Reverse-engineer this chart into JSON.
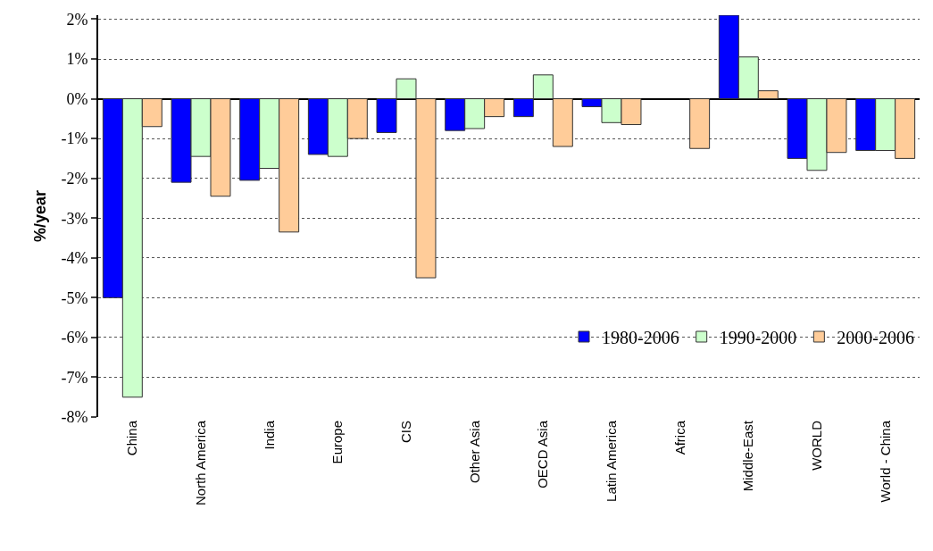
{
  "chart_data": {
    "type": "bar",
    "ylabel": "%/year",
    "categories": [
      "China",
      "North America",
      "India",
      "Europe",
      "CIS",
      "Other Asia",
      "OECD Asia",
      "Latin America",
      "Africa",
      "Middle-East",
      "WORLD",
      "World - China"
    ],
    "series": [
      {
        "name": "1980-2006",
        "color": "#0000ff",
        "values": [
          -5.0,
          -2.1,
          -2.05,
          -1.4,
          -0.85,
          -0.8,
          -0.45,
          -0.2,
          null,
          2.1,
          -1.5,
          -1.3
        ]
      },
      {
        "name": "1990-2000",
        "color": "#ccffcc",
        "values": [
          -7.5,
          -1.45,
          -1.75,
          -1.45,
          0.5,
          -0.75,
          0.6,
          -0.6,
          null,
          1.05,
          -1.8,
          -1.3
        ]
      },
      {
        "name": "2000-2006",
        "color": "#ffcc99",
        "values": [
          -0.7,
          -2.45,
          -3.35,
          -1.0,
          -4.5,
          -0.45,
          -1.2,
          -0.65,
          -1.25,
          0.2,
          -1.35,
          -1.5
        ]
      }
    ],
    "ylim": [
      -8,
      2.1
    ],
    "yticks": [
      {
        "value": 2,
        "label": "2%"
      },
      {
        "value": 1,
        "label": "1%"
      },
      {
        "value": 0,
        "label": "0%"
      },
      {
        "value": -1,
        "label": "-1%"
      },
      {
        "value": -2,
        "label": "-2%"
      },
      {
        "value": -3,
        "label": "-3%"
      },
      {
        "value": -4,
        "label": "-4%"
      },
      {
        "value": -5,
        "label": "-5%"
      },
      {
        "value": -6,
        "label": "-6%"
      },
      {
        "value": -7,
        "label": "-7%"
      },
      {
        "value": -8,
        "label": "-8%"
      }
    ],
    "grid": "y",
    "legend": "bottom right"
  }
}
